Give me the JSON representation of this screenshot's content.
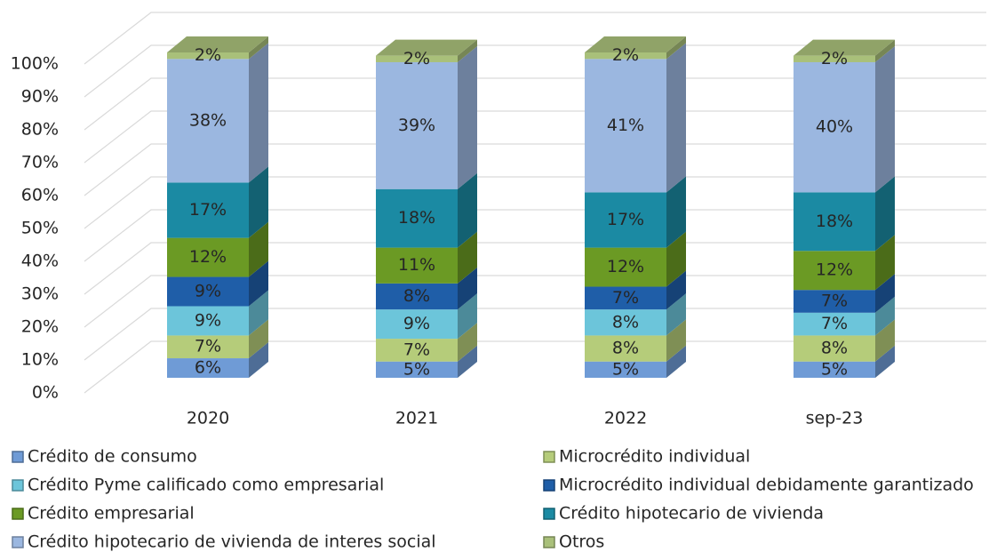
{
  "chart_data": {
    "type": "bar3d_stacked",
    "categories": [
      "2020",
      "2021",
      "2022",
      "sep-23"
    ],
    "ylim": [
      0,
      100
    ],
    "yticks": [
      {
        "value": 0,
        "label": "0%"
      },
      {
        "value": 10,
        "label": "10%"
      },
      {
        "value": 20,
        "label": "20%"
      },
      {
        "value": 30,
        "label": "30%"
      },
      {
        "value": 40,
        "label": "40%"
      },
      {
        "value": 50,
        "label": "50%"
      },
      {
        "value": 60,
        "label": "60%"
      },
      {
        "value": 70,
        "label": "70%"
      },
      {
        "value": 80,
        "label": "80%"
      },
      {
        "value": 90,
        "label": "90%"
      },
      {
        "value": 100,
        "label": "100%"
      }
    ],
    "grid": true,
    "series": [
      {
        "name": "Crédito de consumo",
        "color": "#6f9bd6",
        "values": [
          6,
          5,
          5,
          5
        ],
        "value_labels": [
          "6%",
          "5%",
          "5%",
          "5%"
        ]
      },
      {
        "name": "Microcrédito individual",
        "color": "#b5cc7a",
        "values": [
          7,
          7,
          8,
          8
        ],
        "value_labels": [
          "7%",
          "7%",
          "8%",
          "8%"
        ]
      },
      {
        "name": "Crédito Pyme calificado como empresarial",
        "color": "#6cc5da",
        "values": [
          9,
          9,
          8,
          7
        ],
        "value_labels": [
          "9%",
          "9%",
          "8%",
          "7%"
        ]
      },
      {
        "name": "Microcrédito individual debidamente garantizado",
        "color": "#1f5ea8",
        "values": [
          9,
          8,
          7,
          7
        ],
        "value_labels": [
          "9%",
          "8%",
          "7%",
          "7%"
        ]
      },
      {
        "name": "Crédito empresarial",
        "color": "#6b9a24",
        "values": [
          12,
          11,
          12,
          12
        ],
        "value_labels": [
          "12%",
          "11%",
          "12%",
          "12%"
        ]
      },
      {
        "name": "Crédito hipotecario de vivienda",
        "color": "#1b8aa3",
        "values": [
          17,
          18,
          17,
          18
        ],
        "value_labels": [
          "17%",
          "18%",
          "17%",
          "18%"
        ]
      },
      {
        "name": "Crédito hipotecario de vivienda de interes social",
        "color": "#9bb7e0",
        "values": [
          38,
          39,
          41,
          40
        ],
        "value_labels": [
          "38%",
          "39%",
          "41%",
          "40%"
        ]
      },
      {
        "name": "Otros",
        "color": "#a9c07a",
        "values": [
          2,
          2,
          2,
          2
        ],
        "value_labels": [
          "2%",
          "2%",
          "2%",
          "2%"
        ]
      }
    ]
  }
}
